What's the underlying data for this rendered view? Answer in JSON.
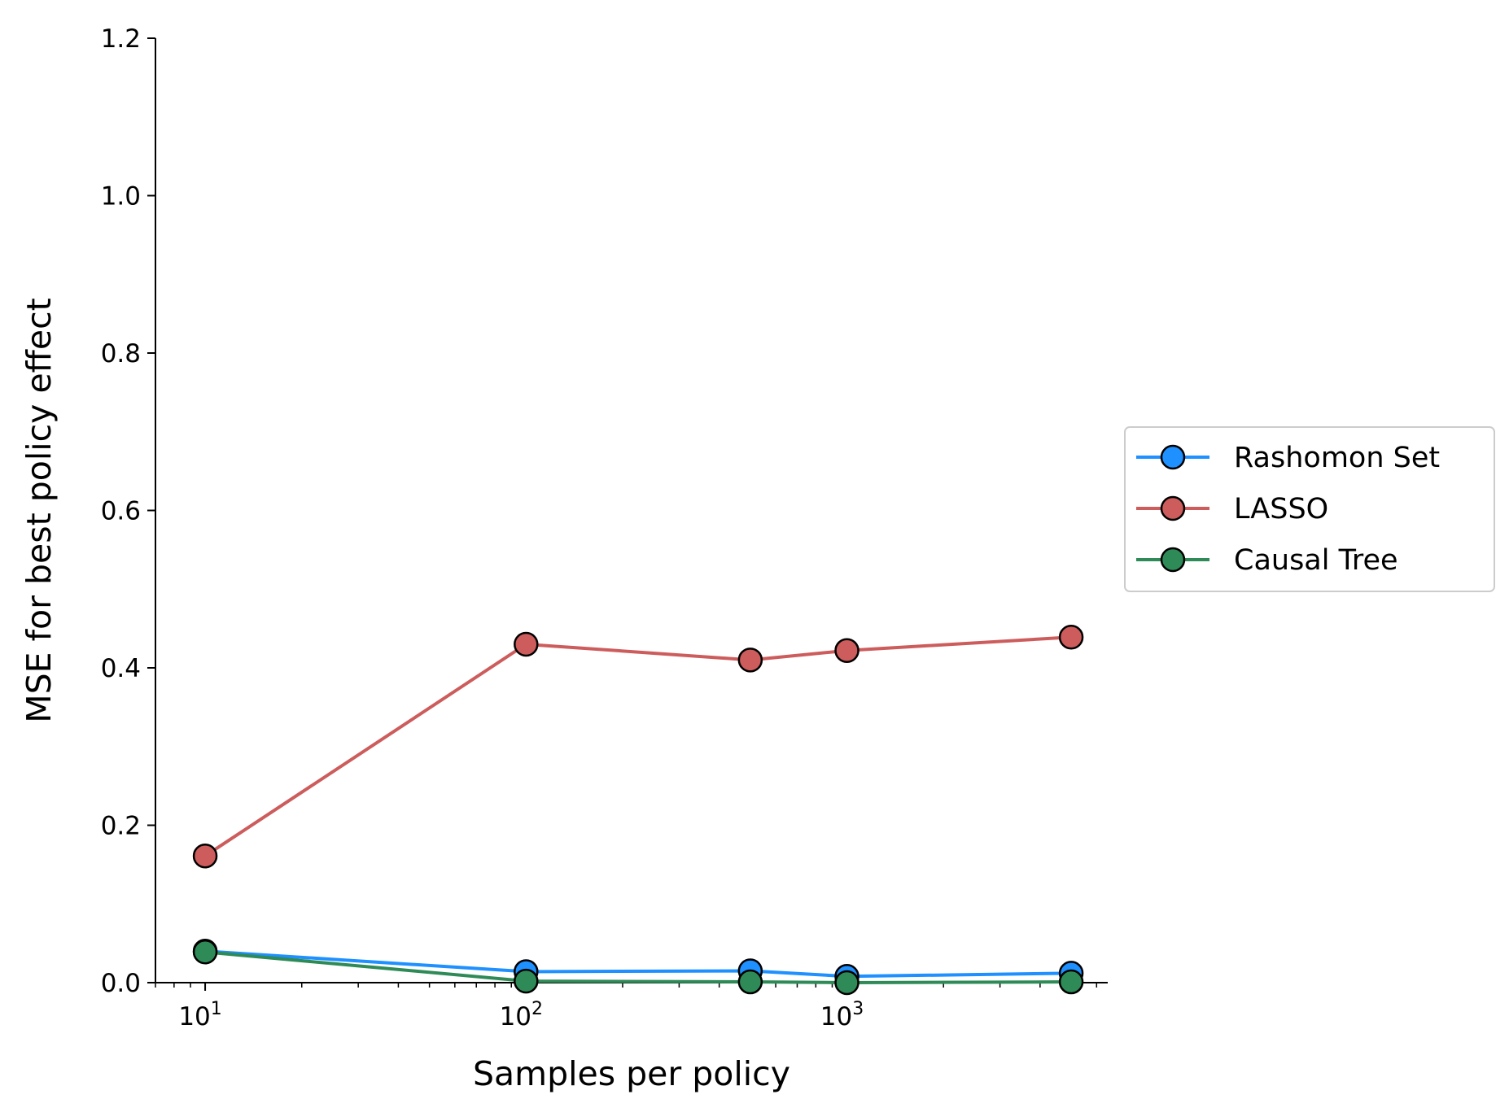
{
  "chart_data": {
    "type": "line",
    "xlabel": "Samples per policy",
    "ylabel": "MSE for best policy effect",
    "xscale": "log",
    "xlim": [
      7,
      6500
    ],
    "ylim": [
      0,
      1.2
    ],
    "yticks": [
      0.0,
      0.2,
      0.4,
      0.6,
      0.8,
      1.0,
      1.2
    ],
    "ytick_labels": [
      "0.0",
      "0.2",
      "0.4",
      "0.6",
      "0.8",
      "1.0",
      "1.2"
    ],
    "xticks": [
      {
        "value": 10,
        "base": "10",
        "exp": "1"
      },
      {
        "value": 100,
        "base": "10",
        "exp": "2"
      },
      {
        "value": 1000,
        "base": "10",
        "exp": "3"
      }
    ],
    "legend_position": "center-right, outside plot",
    "grid": false,
    "x": [
      10,
      100,
      500,
      1000,
      5000
    ],
    "series": [
      {
        "name": "Rashomon Set",
        "color": "#1e90ff",
        "values": [
          0.04,
          0.014,
          0.015,
          0.008,
          0.012
        ]
      },
      {
        "name": "LASSO",
        "color": "#cd5c5c",
        "values": [
          0.161,
          0.43,
          0.41,
          0.422,
          0.439
        ]
      },
      {
        "name": "Causal Tree",
        "color": "#2e8b57",
        "values": [
          0.039,
          0.002,
          0.001,
          0.0,
          0.001
        ]
      }
    ]
  }
}
